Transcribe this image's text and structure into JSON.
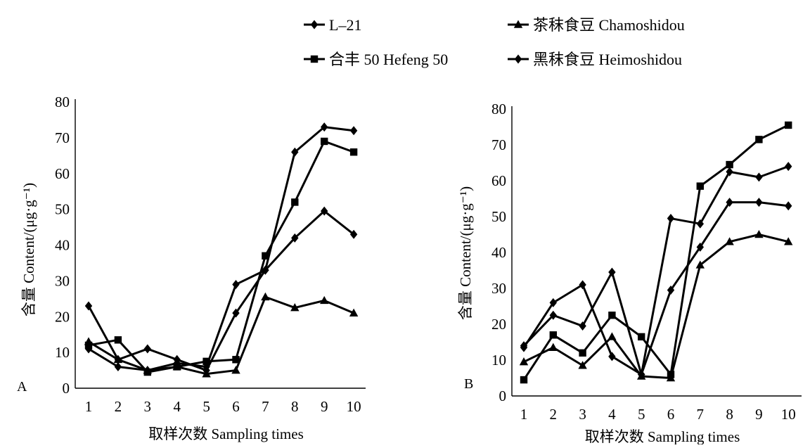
{
  "legend": [
    {
      "label": "L–21",
      "marker": "diamond"
    },
    {
      "label": "茶秣食豆 Chamoshidou",
      "marker": "triangle"
    },
    {
      "label": "合丰 50 Hefeng 50",
      "marker": "square"
    },
    {
      "label": "黑秣食豆 Heimoshidou",
      "marker": "diamond"
    }
  ],
  "colors": {
    "series": "#000000",
    "axis": "#000000",
    "background": "#ffffff"
  },
  "chart_data": [
    {
      "type": "line",
      "panel_label": "A",
      "xlabel": "取样次数 Sampling times",
      "ylabel": "含量  Content/(μg·g⁻¹)",
      "x": [
        1,
        2,
        3,
        4,
        5,
        6,
        7,
        8,
        9,
        10
      ],
      "ylim": [
        0,
        80
      ],
      "yticks": [
        0,
        10,
        20,
        30,
        40,
        50,
        60,
        70,
        80
      ],
      "series": [
        {
          "name": "L–21",
          "marker": "diamond",
          "values": [
            11,
            6,
            5,
            7,
            6,
            29,
            33,
            66,
            73,
            72
          ]
        },
        {
          "name": "茶秣食豆 Chamoshidou",
          "marker": "triangle",
          "values": [
            13,
            8,
            5,
            6,
            4,
            5,
            25.5,
            22.5,
            24.5,
            21
          ]
        },
        {
          "name": "合丰 50 Hefeng 50",
          "marker": "square",
          "values": [
            12,
            13.5,
            4.5,
            6,
            7.5,
            8,
            37,
            52,
            69,
            66
          ]
        },
        {
          "name": "黑秣食豆 Heimoshidou",
          "marker": "diamond",
          "values": [
            23,
            8,
            11,
            8,
            5,
            21,
            33,
            42,
            49.5,
            43
          ]
        }
      ]
    },
    {
      "type": "line",
      "panel_label": "B",
      "xlabel": "取样次数 Sampling times",
      "ylabel": "含量  Content/(μg·g⁻¹)",
      "x": [
        1,
        2,
        3,
        4,
        5,
        6,
        7,
        8,
        9,
        10
      ],
      "ylim": [
        0,
        80
      ],
      "yticks": [
        0,
        10,
        20,
        30,
        40,
        50,
        60,
        70,
        80
      ],
      "series": [
        {
          "name": "L–21",
          "marker": "diamond",
          "values": [
            14,
            22.5,
            19.5,
            34.5,
            6,
            49.5,
            48,
            62.5,
            61,
            64
          ]
        },
        {
          "name": "茶秣食豆 Chamoshidou",
          "marker": "triangle",
          "values": [
            9.5,
            13.5,
            8.5,
            16.5,
            5.5,
            5,
            36.5,
            43,
            45,
            43
          ]
        },
        {
          "name": "合丰 50 Hefeng 50",
          "marker": "square",
          "values": [
            4.5,
            17,
            12,
            22.5,
            16.5,
            6,
            58.5,
            64.5,
            71.5,
            75.5
          ]
        },
        {
          "name": "黑秣食豆 Heimoshidou",
          "marker": "diamond",
          "values": [
            13.5,
            26,
            31,
            11,
            6,
            29.5,
            41.5,
            54,
            54,
            53
          ]
        }
      ]
    }
  ]
}
